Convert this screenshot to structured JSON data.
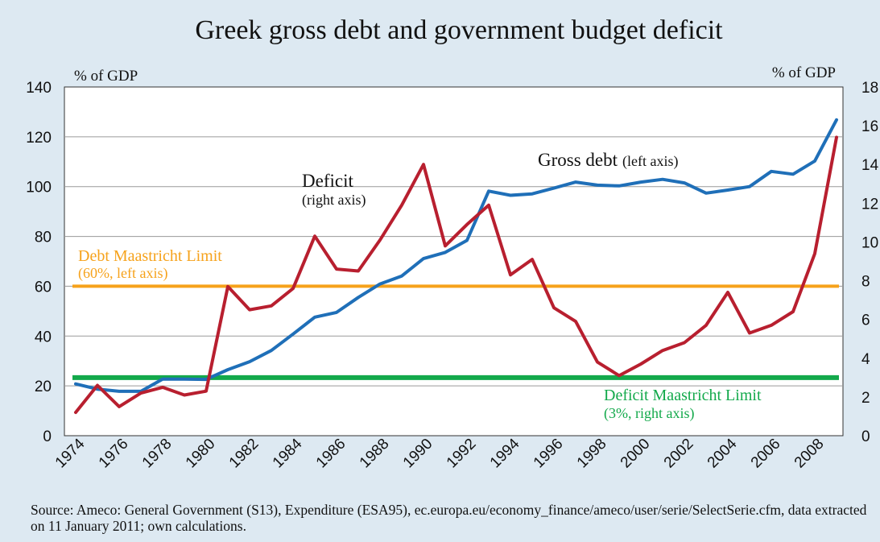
{
  "chart_data": {
    "type": "line",
    "title": "Greek gross debt and government budget deficit",
    "y_left_label": "% of GDP",
    "y_right_label": "% of GDP",
    "y_left_lim": [
      0,
      140
    ],
    "y_right_lim": [
      0,
      18
    ],
    "y_left_ticks": [
      "0",
      "20",
      "40",
      "60",
      "80",
      "100",
      "120",
      "140"
    ],
    "y_right_ticks": [
      "0",
      "2",
      "4",
      "6",
      "8",
      "10",
      "12",
      "14",
      "16",
      "18"
    ],
    "x_lim": [
      1974,
      2009
    ],
    "x_tick_labels": [
      "1974",
      "1976",
      "1978",
      "1980",
      "1982",
      "1984",
      "1986",
      "1988",
      "1990",
      "1992",
      "1994",
      "1996",
      "1998",
      "2000",
      "2002",
      "2004",
      "2006",
      "2008"
    ],
    "grid": "horizontal",
    "series": [
      {
        "name": "Gross debt",
        "axis": "left",
        "color": "#1f6fb8",
        "x": [
          1974,
          1975,
          1976,
          1977,
          1978,
          1979,
          1980,
          1981,
          1982,
          1983,
          1984,
          1985,
          1986,
          1987,
          1988,
          1989,
          1990,
          1991,
          1992,
          1993,
          1994,
          1995,
          1996,
          1997,
          1998,
          1999,
          2000,
          2001,
          2002,
          2003,
          2004,
          2005,
          2006,
          2007,
          2008,
          2009
        ],
        "values": [
          20.8,
          18.7,
          17.8,
          17.8,
          22.7,
          22.7,
          22.6,
          26.5,
          29.7,
          34.2,
          40.8,
          47.6,
          49.5,
          55.5,
          60.9,
          64.1,
          71.1,
          73.6,
          78.4,
          98.2,
          96.5,
          97.1,
          99.4,
          101.8,
          100.6,
          100.3,
          101.8,
          102.9,
          101.5,
          97.4,
          98.6,
          100.0,
          106.1,
          105.0,
          110.3,
          126.8
        ]
      },
      {
        "name": "Deficit",
        "axis": "right",
        "color": "#b81f2f",
        "x": [
          1974,
          1975,
          1976,
          1977,
          1978,
          1979,
          1980,
          1981,
          1982,
          1983,
          1984,
          1985,
          1986,
          1987,
          1988,
          1989,
          1990,
          1991,
          1992,
          1993,
          1994,
          1995,
          1996,
          1997,
          1998,
          1999,
          2000,
          2001,
          2002,
          2003,
          2004,
          2005,
          2006,
          2007,
          2008,
          2009
        ],
        "values": [
          1.2,
          2.6,
          1.5,
          2.2,
          2.5,
          2.1,
          2.3,
          7.7,
          6.5,
          6.7,
          7.6,
          10.3,
          8.6,
          8.5,
          10.1,
          11.9,
          14.0,
          9.8,
          10.9,
          11.9,
          8.3,
          9.1,
          6.6,
          5.9,
          3.8,
          3.1,
          3.7,
          4.4,
          4.8,
          5.7,
          7.4,
          5.3,
          5.7,
          6.4,
          9.4,
          15.4
        ]
      }
    ],
    "reference_lines": [
      {
        "name": "Debt Maastricht Limit",
        "axis": "left",
        "value": 60,
        "color": "#f6a21b"
      },
      {
        "name": "Deficit Maastricht Limit",
        "axis": "right",
        "value": 3,
        "color": "#13a94b"
      }
    ],
    "annotations": {
      "deficit_label": "Deficit",
      "deficit_sub": "(right axis)",
      "debt_label": "Gross debt",
      "debt_sub": "(left axis)",
      "debt_limit_label": "Debt Maastricht Limit",
      "debt_limit_sub": "(60%, left axis)",
      "deficit_limit_label": "Deficit Maastricht Limit",
      "deficit_limit_sub": "(3%, right axis)"
    }
  },
  "source_note": "Source: Ameco: General Government (S13), Expenditure (ESA95), ec.europa.eu/economy_finance/ameco/user/serie/SelectSerie.cfm, data extracted on 11 January 2011; own calculations."
}
